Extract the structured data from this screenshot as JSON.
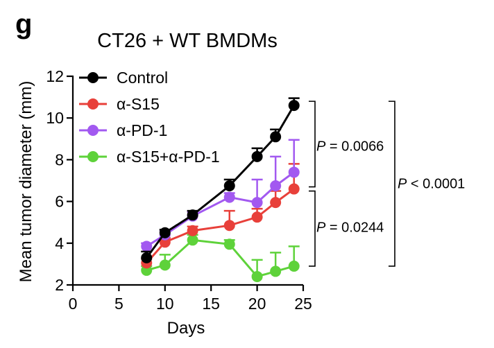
{
  "chart_data": {
    "type": "line",
    "panel_label": "g",
    "title": "CT26 + WT BMDMs",
    "xlabel": "Days",
    "ylabel": "Mean tumor diameter (mm)",
    "xlim": [
      0,
      25
    ],
    "ylim": [
      2,
      12
    ],
    "xticks": [
      0,
      5,
      10,
      15,
      20,
      25
    ],
    "yticks": [
      2,
      4,
      6,
      8,
      10,
      12
    ],
    "x": [
      8,
      10,
      13,
      17,
      20,
      22,
      24
    ],
    "series": [
      {
        "name": "Control",
        "color": "#000000",
        "values": [
          3.3,
          4.5,
          5.35,
          6.75,
          8.15,
          9.1,
          10.6
        ],
        "errors": [
          0.3,
          0.15,
          0.2,
          0.3,
          0.4,
          0.35,
          0.35
        ]
      },
      {
        "name": "α-S15",
        "color": "#e8403a",
        "values": [
          3.05,
          4.05,
          4.6,
          4.85,
          5.25,
          5.95,
          6.6
        ],
        "errors": [
          0.2,
          0.2,
          0.2,
          0.7,
          0.4,
          0.55,
          1.2
        ]
      },
      {
        "name": "α-PD-1",
        "color": "#a259f0",
        "values": [
          3.85,
          4.4,
          5.3,
          6.2,
          5.95,
          6.75,
          7.4
        ],
        "errors": [
          0.15,
          0.2,
          0.2,
          0.2,
          1.1,
          1.4,
          1.55
        ]
      },
      {
        "name": "α-S15+α-PD-1",
        "color": "#5ed23a",
        "values": [
          2.7,
          2.95,
          4.15,
          3.95,
          2.4,
          2.65,
          2.9
        ],
        "errors": [
          0.2,
          0.5,
          0.25,
          0.2,
          0.8,
          0.9,
          0.95
        ]
      }
    ],
    "annotations": [
      {
        "label": "P",
        "text": " = 0.0066"
      },
      {
        "label": "P",
        "text": " = 0.0244"
      },
      {
        "label": "P",
        "text": " < 0.0001"
      }
    ],
    "legend_position": "top-left",
    "grid": false
  }
}
